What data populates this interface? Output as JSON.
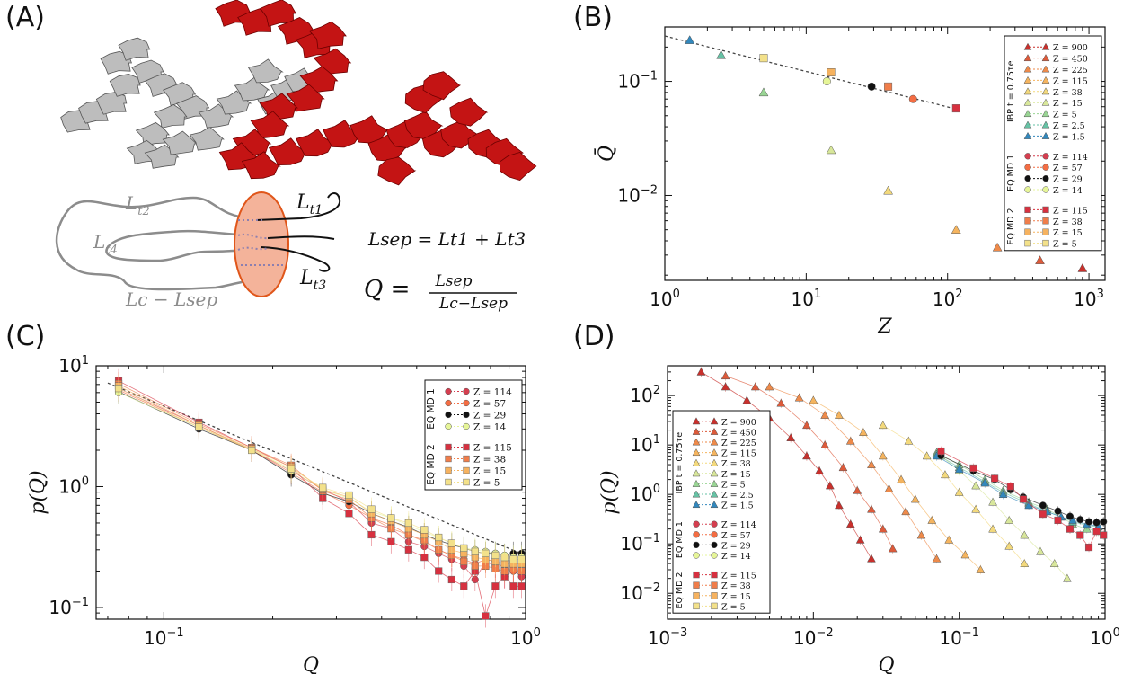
{
  "panels": {
    "A": {
      "letter": "(A)",
      "schematic": {
        "Lt1": "L",
        "Lt1_sub": "t1",
        "Lt2": "L",
        "Lt2_sub": "t2",
        "Lt3": "L",
        "Lt3_sub": "t3",
        "Lt4": "L",
        "Lt4_sub": "t4",
        "Lc_minus_Lsep": "Lc − Lsep",
        "Lsep_eq": "Lsep = Lt1 + Lt3",
        "Q_eq_lhs": "Q =",
        "Q_eq_num": "Lsep",
        "Q_eq_den": "Lc−Lsep"
      }
    },
    "B": {
      "letter": "(B)"
    },
    "C": {
      "letter": "(C)"
    },
    "D": {
      "letter": "(D)"
    }
  },
  "colors": {
    "Z900": "#c9302c",
    "Z450": "#dd5a3a",
    "Z225": "#ee8a4a",
    "Z115": "#f5b45e",
    "Z38": "#f3d97c",
    "Z15": "#d8e79a",
    "Z5": "#99d594",
    "Z2_5": "#66c2a5",
    "Z1_5": "#3288bd",
    "MD1_114": "#d53e4f",
    "MD1_57": "#f46d43",
    "MD1_29": "#111111",
    "MD1_14": "#e6f598",
    "MD2_115": "#d7303f",
    "MD2_38": "#f07d4a",
    "MD2_15": "#f6b25f",
    "MD2_5": "#f3e18a",
    "chainRed": "#c41414",
    "chainGrey": "#8c8c8c",
    "blob": "#f4b39a",
    "blobEdge": "#e0561a"
  },
  "chart_data": [
    {
      "panel": "B",
      "type": "scatter",
      "xlabel": "Z",
      "ylabel": "Q̄",
      "xscale": "log",
      "yscale": "log",
      "xlim": [
        1,
        1300
      ],
      "ylim": [
        0.0018,
        0.3
      ],
      "x_ticks": [
        "10^0",
        "10^1",
        "10^2",
        "10^3"
      ],
      "y_ticks": [
        "10^-2",
        "10^-1"
      ],
      "fit_line": {
        "x": [
          1.0,
          110
        ],
        "y": [
          0.25,
          0.058
        ]
      },
      "legend": {
        "groups": [
          {
            "title": "IBP  t = 0.75τe",
            "marker": "triangle",
            "entries": [
              "Z = 900",
              "Z = 450",
              "Z = 225",
              "Z = 115",
              "Z = 38",
              "Z = 15",
              "Z = 5",
              "Z = 2.5",
              "Z = 1.5"
            ]
          },
          {
            "title": "EQ MD 1",
            "marker": "circle",
            "entries": [
              "Z = 114",
              "Z = 57",
              "Z = 29",
              "Z = 14"
            ]
          },
          {
            "title": "EQ MD 2",
            "marker": "square",
            "entries": [
              "Z = 115",
              "Z = 38",
              "Z = 15",
              "Z = 5"
            ]
          }
        ]
      },
      "series": [
        {
          "name": "IBP Z=900",
          "marker": "triangle",
          "colorKey": "Z900",
          "x": [
            900
          ],
          "y": [
            0.0023
          ]
        },
        {
          "name": "IBP Z=450",
          "marker": "triangle",
          "colorKey": "Z450",
          "x": [
            450
          ],
          "y": [
            0.0027
          ]
        },
        {
          "name": "IBP Z=225",
          "marker": "triangle",
          "colorKey": "Z225",
          "x": [
            225
          ],
          "y": [
            0.0035
          ]
        },
        {
          "name": "IBP Z=115",
          "marker": "triangle",
          "colorKey": "Z115",
          "x": [
            115
          ],
          "y": [
            0.005
          ]
        },
        {
          "name": "IBP Z=38",
          "marker": "triangle",
          "colorKey": "Z38",
          "x": [
            38
          ],
          "y": [
            0.011
          ]
        },
        {
          "name": "IBP Z=15",
          "marker": "triangle",
          "colorKey": "Z15",
          "x": [
            15
          ],
          "y": [
            0.025
          ]
        },
        {
          "name": "IBP Z=5",
          "marker": "triangle",
          "colorKey": "Z5",
          "x": [
            5
          ],
          "y": [
            0.08
          ]
        },
        {
          "name": "IBP Z=2.5",
          "marker": "triangle",
          "colorKey": "Z2_5",
          "x": [
            2.5
          ],
          "y": [
            0.17
          ]
        },
        {
          "name": "IBP Z=1.5",
          "marker": "triangle",
          "colorKey": "Z1_5",
          "x": [
            1.5
          ],
          "y": [
            0.23
          ]
        },
        {
          "name": "MD1 Z=57",
          "marker": "circle",
          "colorKey": "MD1_57",
          "x": [
            57
          ],
          "y": [
            0.07
          ]
        },
        {
          "name": "MD1 Z=29",
          "marker": "circle",
          "colorKey": "MD1_29",
          "x": [
            29
          ],
          "y": [
            0.09
          ]
        },
        {
          "name": "MD1 Z=14",
          "marker": "circle",
          "colorKey": "MD1_14",
          "x": [
            14
          ],
          "y": [
            0.1
          ]
        },
        {
          "name": "MD2 Z=115",
          "marker": "square",
          "colorKey": "MD2_115",
          "x": [
            115
          ],
          "y": [
            0.058
          ]
        },
        {
          "name": "MD2 Z=38",
          "marker": "square",
          "colorKey": "MD2_38",
          "x": [
            38
          ],
          "y": [
            0.09
          ]
        },
        {
          "name": "MD2 Z=15",
          "marker": "square",
          "colorKey": "MD2_15",
          "x": [
            15
          ],
          "y": [
            0.12
          ]
        },
        {
          "name": "MD2 Z=5",
          "marker": "square",
          "colorKey": "MD2_5",
          "x": [
            5
          ],
          "y": [
            0.16
          ]
        }
      ]
    },
    {
      "panel": "C",
      "type": "line",
      "xlabel": "Q",
      "ylabel": "p(Q)",
      "xscale": "log",
      "yscale": "log",
      "xlim": [
        0.065,
        1.0
      ],
      "ylim": [
        0.08,
        10
      ],
      "x_ticks": [
        "10^-1",
        "10^0"
      ],
      "y_ticks": [
        "10^-1",
        "10^0",
        "10^1"
      ],
      "fit_line": {
        "x": [
          0.07,
          1.0
        ],
        "y": [
          7.2,
          0.27
        ]
      },
      "legend": {
        "groups": [
          {
            "title": "EQ MD 1",
            "marker": "circle",
            "entries": [
              "Z = 114",
              "Z = 57",
              "Z = 29",
              "Z = 14"
            ]
          },
          {
            "title": "EQ MD 2",
            "marker": "square",
            "entries": [
              "Z = 115",
              "Z = 38",
              "Z = 15",
              "Z = 5"
            ]
          }
        ]
      },
      "x": [
        0.075,
        0.125,
        0.175,
        0.225,
        0.275,
        0.325,
        0.375,
        0.425,
        0.475,
        0.525,
        0.575,
        0.625,
        0.675,
        0.725,
        0.775,
        0.825,
        0.875,
        0.925,
        0.975
      ],
      "series": [
        {
          "name": "MD1 Z=114",
          "marker": "circle",
          "colorKey": "MD1_114",
          "values": [
            6.5,
            3.2,
            2.0,
            1.35,
            0.95,
            0.75,
            0.5,
            0.45,
            0.35,
            0.32,
            0.28,
            0.25,
            0.22,
            0.17,
            0.24,
            0.22,
            0.18,
            0.2,
            0.18
          ]
        },
        {
          "name": "MD1 Z=57",
          "marker": "circle",
          "colorKey": "MD1_57",
          "values": [
            6.3,
            3.1,
            2.0,
            1.3,
            0.9,
            0.7,
            0.55,
            0.48,
            0.4,
            0.35,
            0.3,
            0.27,
            0.25,
            0.23,
            0.25,
            0.24,
            0.21,
            0.2,
            0.2
          ]
        },
        {
          "name": "MD1 Z=29",
          "marker": "circle",
          "colorKey": "MD1_29",
          "values": [
            6.1,
            3.0,
            2.0,
            1.25,
            0.88,
            0.75,
            0.6,
            0.52,
            0.46,
            0.4,
            0.36,
            0.33,
            0.31,
            0.29,
            0.28,
            0.28,
            0.27,
            0.28,
            0.28
          ]
        },
        {
          "name": "MD1 Z=14",
          "marker": "circle",
          "colorKey": "MD1_14",
          "values": [
            6.0,
            3.1,
            2.05,
            1.35,
            0.95,
            0.8,
            0.62,
            0.55,
            0.48,
            0.42,
            0.38,
            0.34,
            0.31,
            0.3,
            0.29,
            0.28,
            0.27,
            0.26,
            0.26
          ]
        },
        {
          "name": "MD2 Z=115",
          "marker": "square",
          "colorKey": "MD2_115",
          "values": [
            7.5,
            3.4,
            2.1,
            1.45,
            0.8,
            0.6,
            0.4,
            0.35,
            0.3,
            0.26,
            0.2,
            0.17,
            0.15,
            0.2,
            0.085,
            0.15,
            0.18,
            0.15,
            0.15
          ]
        },
        {
          "name": "MD2 Z=38",
          "marker": "square",
          "colorKey": "MD2_38",
          "values": [
            7.1,
            3.3,
            2.1,
            1.5,
            0.92,
            0.78,
            0.55,
            0.45,
            0.4,
            0.36,
            0.3,
            0.27,
            0.24,
            0.22,
            0.22,
            0.21,
            0.2,
            0.21,
            0.2
          ]
        },
        {
          "name": "MD2 Z=15",
          "marker": "square",
          "colorKey": "MD2_15",
          "values": [
            6.8,
            3.2,
            2.05,
            1.45,
            0.95,
            0.82,
            0.6,
            0.52,
            0.45,
            0.4,
            0.35,
            0.3,
            0.28,
            0.26,
            0.25,
            0.24,
            0.23,
            0.23,
            0.23
          ]
        },
        {
          "name": "MD2 Z=5",
          "marker": "square",
          "colorKey": "MD2_5",
          "values": [
            6.5,
            3.1,
            2.0,
            1.4,
            0.98,
            0.85,
            0.65,
            0.55,
            0.5,
            0.44,
            0.38,
            0.34,
            0.31,
            0.29,
            0.28,
            0.27,
            0.26,
            0.25,
            0.25
          ]
        }
      ]
    },
    {
      "panel": "D",
      "type": "scatter",
      "xlabel": "Q",
      "ylabel": "p(Q)",
      "xscale": "log",
      "yscale": "log",
      "xlim": [
        0.001,
        1.0
      ],
      "ylim": [
        0.003,
        400
      ],
      "x_ticks": [
        "10^-3",
        "10^-2",
        "10^-1",
        "10^0"
      ],
      "y_ticks": [
        "10^-2",
        "10^-1",
        "10^0",
        "10^1",
        "10^2"
      ],
      "legend": {
        "groups": [
          {
            "title": "IBP  t = 0.75τe",
            "marker": "triangle",
            "entries": [
              "Z = 900",
              "Z = 450",
              "Z = 225",
              "Z = 115",
              "Z = 38",
              "Z = 15",
              "Z = 5",
              "Z = 2.5",
              "Z = 1.5"
            ]
          },
          {
            "title": "EQ MD 1",
            "marker": "circle",
            "entries": [
              "Z = 114",
              "Z = 57",
              "Z = 29",
              "Z = 14"
            ]
          },
          {
            "title": "EQ MD 2",
            "marker": "square",
            "entries": [
              "Z = 115",
              "Z = 38",
              "Z = 15",
              "Z = 5"
            ]
          }
        ]
      },
      "series": [
        {
          "name": "IBP Z=900",
          "marker": "triangle",
          "colorKey": "Z900",
          "x": [
            0.0017,
            0.0025,
            0.0035,
            0.005,
            0.007,
            0.009,
            0.011,
            0.013,
            0.015,
            0.018,
            0.021,
            0.025
          ],
          "y": [
            300,
            150,
            80,
            35,
            14,
            6,
            3,
            1.5,
            0.6,
            0.25,
            0.12,
            0.05
          ]
        },
        {
          "name": "IBP Z=450",
          "marker": "triangle",
          "colorKey": "Z450",
          "x": [
            0.0025,
            0.004,
            0.006,
            0.009,
            0.012,
            0.016,
            0.02,
            0.025,
            0.03,
            0.035
          ],
          "y": [
            250,
            150,
            70,
            25,
            10,
            3.5,
            1.2,
            0.5,
            0.2,
            0.08
          ]
        },
        {
          "name": "IBP Z=225",
          "marker": "triangle",
          "colorKey": "Z225",
          "x": [
            0.005,
            0.008,
            0.012,
            0.018,
            0.025,
            0.033,
            0.043,
            0.055,
            0.07
          ],
          "y": [
            150,
            90,
            40,
            12,
            4,
            1.3,
            0.45,
            0.15,
            0.05
          ]
        },
        {
          "name": "IBP Z=115",
          "marker": "triangle",
          "colorKey": "Z115",
          "x": [
            0.01,
            0.015,
            0.022,
            0.03,
            0.04,
            0.05,
            0.065,
            0.085,
            0.11,
            0.14
          ],
          "y": [
            80,
            40,
            18,
            6,
            2,
            0.8,
            0.3,
            0.12,
            0.06,
            0.03
          ]
        },
        {
          "name": "IBP Z=38",
          "marker": "triangle",
          "colorKey": "Z38",
          "x": [
            0.03,
            0.045,
            0.06,
            0.08,
            0.1,
            0.13,
            0.17,
            0.22,
            0.28
          ],
          "y": [
            25,
            12,
            6,
            2.5,
            1.1,
            0.5,
            0.2,
            0.09,
            0.04
          ]
        },
        {
          "name": "IBP Z=15",
          "marker": "triangle",
          "colorKey": "Z15",
          "x": [
            0.075,
            0.1,
            0.13,
            0.17,
            0.22,
            0.28,
            0.36,
            0.45,
            0.55
          ],
          "y": [
            6,
            3,
            1.5,
            0.7,
            0.3,
            0.15,
            0.07,
            0.04,
            0.02
          ]
        },
        {
          "name": "IBP Z=5",
          "marker": "triangle",
          "colorKey": "Z5",
          "x": [
            0.07,
            0.1,
            0.15,
            0.2,
            0.3,
            0.4,
            0.5,
            0.6,
            0.75,
            0.9
          ],
          "y": [
            7,
            4,
            2,
            1.2,
            0.7,
            0.5,
            0.35,
            0.25,
            0.2,
            0.18
          ]
        },
        {
          "name": "IBP Z=2.5",
          "marker": "triangle",
          "colorKey": "Z2_5",
          "x": [
            0.07,
            0.1,
            0.15,
            0.2,
            0.3,
            0.4,
            0.5,
            0.6,
            0.75,
            0.9
          ],
          "y": [
            6.5,
            3.5,
            1.8,
            1.1,
            0.65,
            0.45,
            0.35,
            0.28,
            0.24,
            0.22
          ]
        },
        {
          "name": "IBP Z=1.5",
          "marker": "triangle",
          "colorKey": "Z1_5",
          "x": [
            0.07,
            0.1,
            0.15,
            0.2,
            0.3,
            0.4,
            0.5,
            0.6,
            0.75,
            0.9
          ],
          "y": [
            6,
            3.2,
            1.7,
            1.0,
            0.6,
            0.45,
            0.35,
            0.3,
            0.25,
            0.23
          ]
        },
        {
          "name": "MD1 Z=29",
          "marker": "circle",
          "colorKey": "MD1_29",
          "x": [
            0.075,
            0.125,
            0.175,
            0.225,
            0.275,
            0.375,
            0.475,
            0.575,
            0.675,
            0.775,
            0.875,
            0.975
          ],
          "y": [
            6.1,
            3.0,
            2.0,
            1.25,
            0.88,
            0.6,
            0.46,
            0.36,
            0.31,
            0.28,
            0.27,
            0.28
          ]
        },
        {
          "name": "MD2 Z=115",
          "marker": "square",
          "colorKey": "MD2_115",
          "x": [
            0.075,
            0.125,
            0.175,
            0.225,
            0.275,
            0.375,
            0.475,
            0.575,
            0.675,
            0.775,
            0.875,
            0.975
          ],
          "y": [
            7.5,
            3.4,
            2.1,
            1.45,
            0.8,
            0.4,
            0.3,
            0.2,
            0.15,
            0.085,
            0.18,
            0.15
          ]
        }
      ]
    }
  ]
}
